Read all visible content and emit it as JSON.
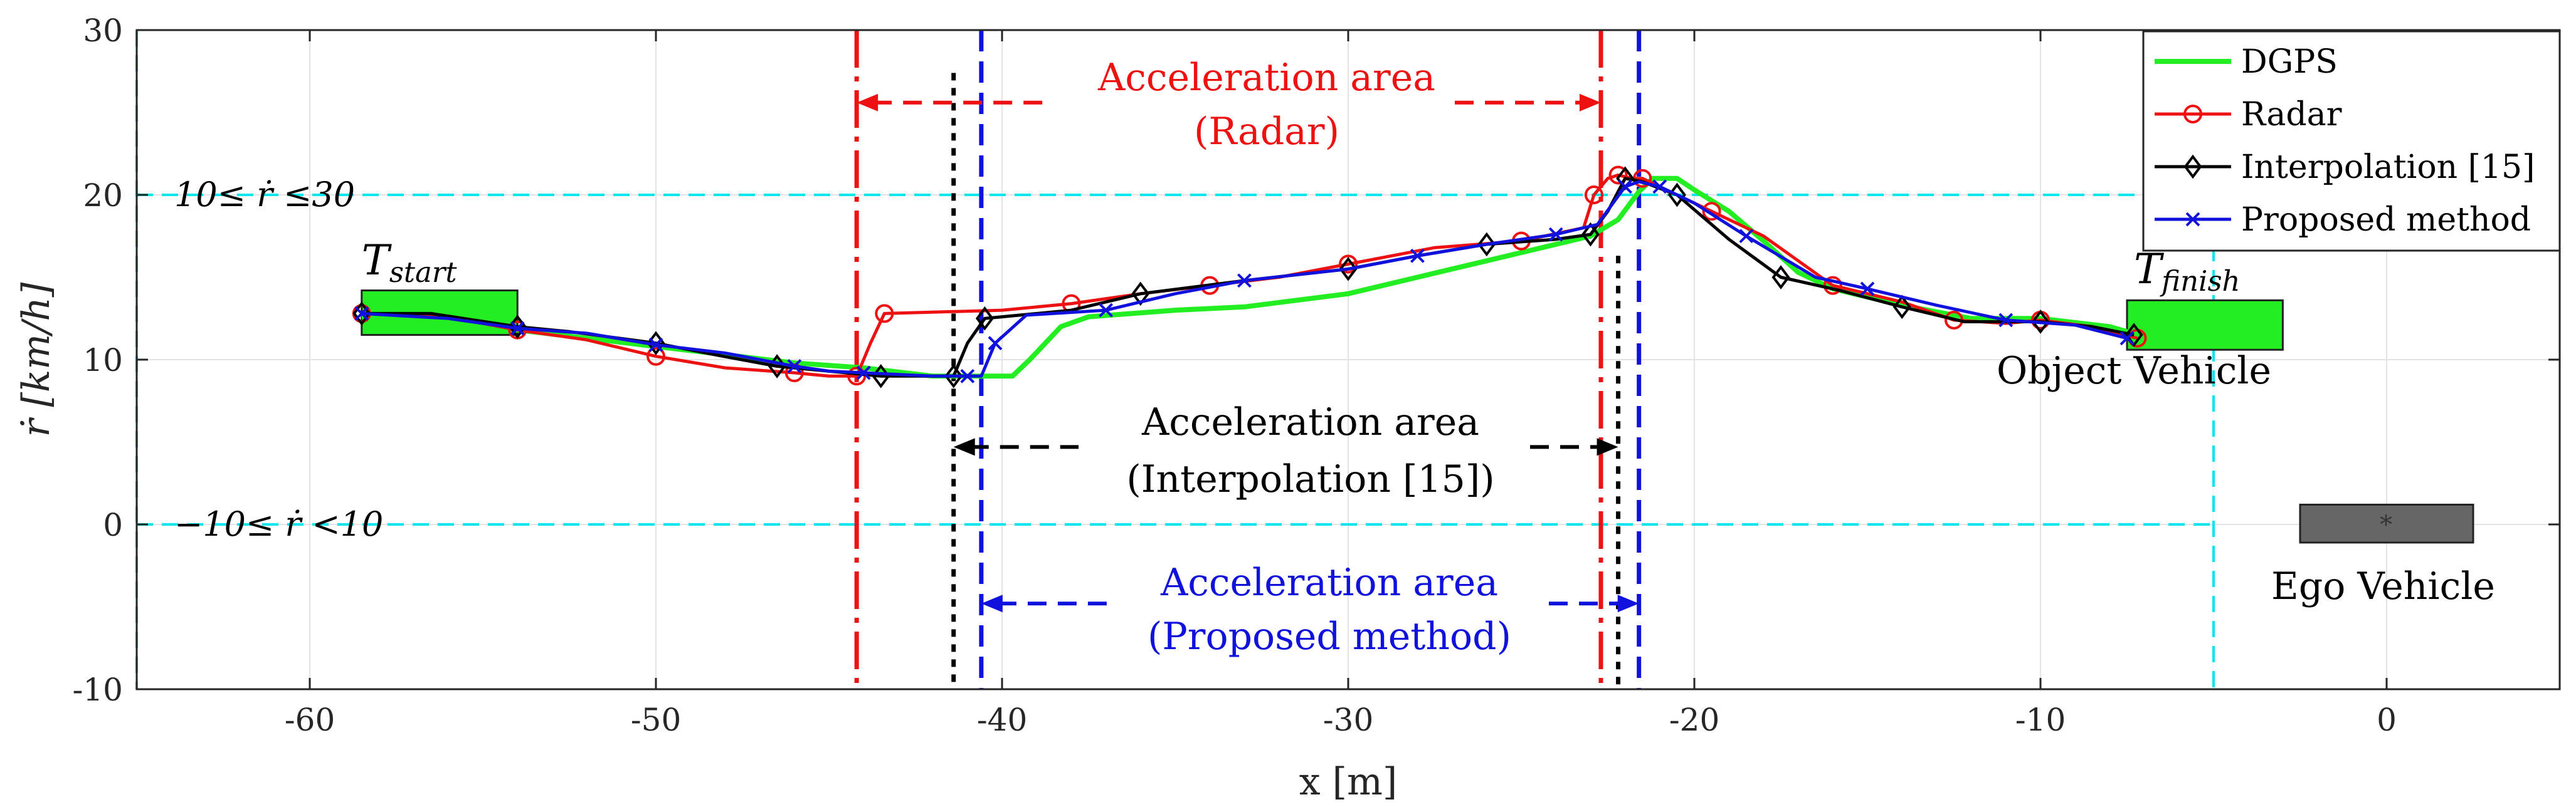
{
  "chart_data": {
    "type": "line",
    "xlabel": "x [m]",
    "ylabel": "ṙ [km/h]",
    "xlim": [
      -65,
      5
    ],
    "ylim": [
      -10,
      30
    ],
    "xticks": [
      -60,
      -50,
      -40,
      -30,
      -20,
      -10,
      0
    ],
    "yticks": [
      -10,
      0,
      10,
      20,
      30
    ],
    "xtick_labels": [
      "-60",
      "-50",
      "-40",
      "-30",
      "-20",
      "-10",
      "0"
    ],
    "ytick_labels": [
      "-10",
      "0",
      "10",
      "20",
      "30"
    ],
    "grid": true,
    "legend_position": "top-right",
    "colors": {
      "dgps": "#22ee22",
      "radar": "#ee1111",
      "interp": "#000000",
      "proposed": "#1111dd",
      "threshold": "#00e5ee",
      "box_vehicle": "#22ee22",
      "ego_vehicle": "#666666"
    },
    "series": [
      {
        "name": "DGPS",
        "key": "dgps",
        "marker": "none",
        "x": [
          -58.5,
          -56,
          -54,
          -52,
          -50,
          -48,
          -46,
          -44,
          -42,
          -39.7,
          -39.2,
          -38.3,
          -37.5,
          -35,
          -33,
          -30,
          -28,
          -25,
          -23,
          -22.2,
          -21.6,
          -21.2,
          -20.5,
          -20,
          -19,
          -18,
          -17,
          -16,
          -14,
          -12,
          -10,
          -8,
          -7
        ],
        "y": [
          12.6,
          12.5,
          11.8,
          11.3,
          10.8,
          10.3,
          9.8,
          9.5,
          9,
          9,
          10,
          12,
          12.6,
          13,
          13.2,
          14,
          15,
          16.5,
          17.5,
          18.5,
          20.2,
          21,
          21,
          20.3,
          19,
          17.2,
          15.3,
          14.3,
          13.3,
          12.5,
          12.5,
          12,
          11.4
        ]
      },
      {
        "name": "Radar",
        "key": "radar",
        "marker": "circle",
        "x": [
          -58.5,
          -56,
          -54,
          -52,
          -50,
          -48,
          -46,
          -45,
          -44.2,
          -43.8,
          -43.4,
          -40,
          -38,
          -36,
          -34,
          -32,
          -30,
          -27.5,
          -25,
          -23.2,
          -22.9,
          -22.5,
          -22.2,
          -21.8,
          -21.5,
          -21,
          -19.5,
          -18,
          -16,
          -14,
          -12.5,
          -11,
          -10,
          -8.5,
          -7.2
        ],
        "y": [
          12.8,
          12.6,
          11.8,
          11.2,
          10.2,
          9.5,
          9.2,
          9,
          9,
          11,
          12.8,
          13,
          13.4,
          14,
          14.5,
          15,
          15.8,
          16.8,
          17.2,
          18,
          20,
          21,
          21.2,
          21,
          21,
          20.5,
          19,
          17.5,
          14.5,
          13.5,
          12.4,
          12.2,
          12.4,
          12,
          11.3
        ]
      },
      {
        "name": "Interpolation [15]",
        "key": "interp",
        "marker": "diamond",
        "x": [
          -58.5,
          -56.5,
          -54,
          -52.5,
          -50,
          -48.3,
          -46.5,
          -45,
          -43.5,
          -42.5,
          -41.4,
          -41,
          -40.5,
          -38,
          -36,
          -33,
          -30,
          -28,
          -26,
          -24,
          -23,
          -22.5,
          -22,
          -21.5,
          -20.5,
          -19,
          -17.5,
          -15.8,
          -14,
          -12.2,
          -10,
          -8.5,
          -7.3
        ],
        "y": [
          12.8,
          12.8,
          12,
          11.7,
          11,
          10.3,
          9.6,
          9.3,
          9,
          9,
          9,
          11,
          12.5,
          13,
          14,
          14.8,
          15.5,
          16.3,
          17,
          17.3,
          17.6,
          19,
          21,
          20.8,
          20,
          17.3,
          15,
          14.2,
          13.2,
          12.3,
          12.3,
          12,
          11.5
        ]
      },
      {
        "name": "Proposed method",
        "key": "proposed",
        "marker": "x",
        "x": [
          -58.5,
          -56,
          -54,
          -52,
          -50,
          -48,
          -46,
          -45,
          -44,
          -42,
          -41,
          -40.6,
          -40.2,
          -39.3,
          -37,
          -35,
          -33,
          -30,
          -28,
          -26,
          -24,
          -22.8,
          -22,
          -21.6,
          -21,
          -20,
          -18.5,
          -16.5,
          -15,
          -13,
          -11,
          -9,
          -7.5
        ],
        "y": [
          12.8,
          12.5,
          11.9,
          11.6,
          10.9,
          10.4,
          9.6,
          9.3,
          9.2,
          9,
          9,
          9,
          11,
          12.7,
          13,
          14,
          14.8,
          15.5,
          16.3,
          17,
          17.6,
          18.2,
          20.5,
          20.8,
          20.5,
          19.5,
          17.5,
          15,
          14.3,
          13.3,
          12.4,
          12.1,
          11.3
        ]
      }
    ],
    "thresholds": [
      {
        "label": "10≤ ṙ ≤30",
        "y": 20
      },
      {
        "label": "−10≤ ṙ <10",
        "y": 0
      }
    ],
    "vertical_lines": [
      {
        "x": -44.2,
        "key": "radar"
      },
      {
        "x": -22.7,
        "key": "radar"
      },
      {
        "x": -41.4,
        "key": "interp"
      },
      {
        "x": -22.2,
        "key": "interp"
      },
      {
        "x": -40.6,
        "key": "proposed"
      },
      {
        "x": -21.6,
        "key": "proposed"
      },
      {
        "x": -65,
        "key": "threshold"
      },
      {
        "x": -5,
        "key": "threshold"
      }
    ],
    "annotations": {
      "radar_area": {
        "title": "Acceleration area",
        "subtitle": "(Radar)",
        "x_from": -44.2,
        "x_to": -22.7,
        "arrow_y": 25.6
      },
      "interp_area": {
        "title": "Acceleration area",
        "subtitle": "(Interpolation [15])",
        "x_from": -41.4,
        "x_to": -22.2,
        "arrow_y": 4.7
      },
      "proposed_area": {
        "title": "Acceleration area",
        "subtitle": "(Proposed method)",
        "x_from": -40.6,
        "x_to": -21.6,
        "arrow_y": -4.8
      },
      "t_start": "T_start",
      "t_finish": "T_finish",
      "object_vehicle": "Object Vehicle",
      "ego_vehicle": "Ego Vehicle"
    },
    "boxes": [
      {
        "key": "start",
        "x": [
          -58.5,
          -54
        ],
        "y": [
          11.5,
          14.2
        ],
        "color_key": "box_vehicle"
      },
      {
        "key": "finish",
        "x": [
          -7.5,
          -3
        ],
        "y": [
          10.6,
          13.6
        ],
        "color_key": "box_vehicle"
      },
      {
        "key": "ego",
        "x": [
          -2.5,
          2.5
        ],
        "y": [
          -1.1,
          1.2
        ],
        "color_key": "ego_vehicle"
      }
    ]
  }
}
